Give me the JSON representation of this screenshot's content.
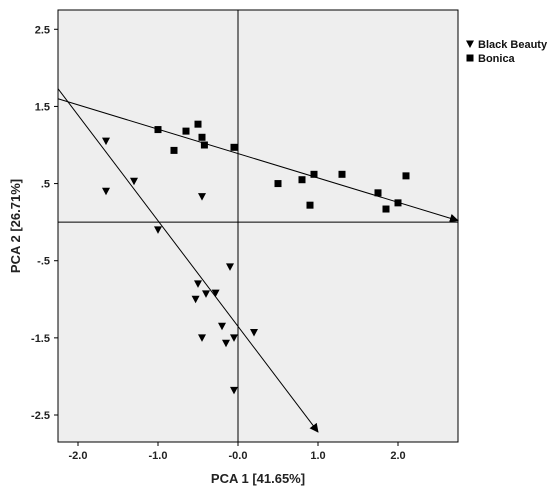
{
  "chart_data": {
    "type": "scatter",
    "xlabel": "PCA 1 [41.65%]",
    "ylabel": "PCA 2 [26.71%]",
    "xlim": [
      -2.25,
      2.75
    ],
    "ylim": [
      -2.85,
      2.75
    ],
    "x_ticks": [
      -2.0,
      -1.0,
      0.0,
      1.0,
      2.0
    ],
    "x_tick_labels": [
      "-2.0",
      "-1.0",
      "-0.0",
      "1.0",
      "2.0"
    ],
    "y_ticks": [
      2.5,
      1.5,
      0.5,
      -0.5,
      -1.5,
      -2.5
    ],
    "y_tick_labels": [
      "2.5",
      "1.5",
      ".5",
      "-.5",
      "-1.5",
      "-2.5"
    ],
    "zero_lines": {
      "x": 0,
      "y": 0
    },
    "grid": false,
    "legend": "top-right",
    "series": [
      {
        "name": "Black Beauty",
        "marker": "triangle-down",
        "color": "#000000",
        "points": [
          [
            -1.65,
            1.05
          ],
          [
            -1.65,
            0.4
          ],
          [
            -1.3,
            0.53
          ],
          [
            -0.45,
            0.33
          ],
          [
            -1.0,
            -0.1
          ],
          [
            -0.1,
            -0.58
          ],
          [
            -0.5,
            -0.8
          ],
          [
            -0.4,
            -0.93
          ],
          [
            -0.28,
            -0.92
          ],
          [
            -0.53,
            -1.0
          ],
          [
            -0.2,
            -1.35
          ],
          [
            0.2,
            -1.43
          ],
          [
            -0.45,
            -1.5
          ],
          [
            -0.05,
            -1.5
          ],
          [
            -0.15,
            -1.57
          ],
          [
            -0.05,
            -2.18
          ]
        ],
        "fit_line": [
          [
            -2.25,
            1.73
          ],
          [
            1.0,
            -2.72
          ]
        ]
      },
      {
        "name": "Bonica",
        "marker": "square",
        "color": "#000000",
        "points": [
          [
            -1.0,
            1.2
          ],
          [
            -0.65,
            1.18
          ],
          [
            -0.5,
            1.27
          ],
          [
            -0.45,
            1.1
          ],
          [
            -0.8,
            0.93
          ],
          [
            -0.42,
            1.0
          ],
          [
            -0.05,
            0.97
          ],
          [
            0.5,
            0.5
          ],
          [
            0.8,
            0.55
          ],
          [
            0.95,
            0.62
          ],
          [
            1.3,
            0.62
          ],
          [
            0.9,
            0.22
          ],
          [
            1.75,
            0.38
          ],
          [
            1.85,
            0.17
          ],
          [
            2.0,
            0.25
          ],
          [
            2.1,
            0.6
          ]
        ],
        "fit_line": [
          [
            -2.25,
            1.6
          ],
          [
            2.75,
            0.02
          ]
        ]
      }
    ]
  }
}
